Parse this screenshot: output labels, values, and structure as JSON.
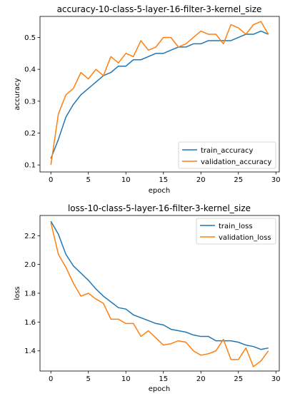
{
  "chart_data": [
    {
      "type": "line",
      "title": "accuracy-10-class-5-layer-16-filter-3-kernel_size",
      "xlabel": "epoch",
      "ylabel": "accuracy",
      "xlim": [
        -1.45,
        30.45
      ],
      "ylim": [
        0.078,
        0.566
      ],
      "xticks": [
        0,
        5,
        10,
        15,
        20,
        25,
        30
      ],
      "yticks": [
        0.1,
        0.2,
        0.3,
        0.4,
        0.5
      ],
      "ytick_labels": [
        "0.1",
        "0.2",
        "0.3",
        "0.4",
        "0.5"
      ],
      "grid": false,
      "legend_position": "lower-right",
      "x": [
        0,
        1,
        2,
        3,
        4,
        5,
        6,
        7,
        8,
        9,
        10,
        11,
        12,
        13,
        14,
        15,
        16,
        17,
        18,
        19,
        20,
        21,
        22,
        23,
        24,
        25,
        26,
        27,
        28,
        29
      ],
      "series": [
        {
          "name": "train_accuracy",
          "color": "#1f77b4",
          "values": [
            0.12,
            0.18,
            0.25,
            0.29,
            0.32,
            0.34,
            0.36,
            0.38,
            0.39,
            0.41,
            0.41,
            0.43,
            0.43,
            0.44,
            0.45,
            0.45,
            0.46,
            0.47,
            0.47,
            0.48,
            0.48,
            0.49,
            0.49,
            0.49,
            0.49,
            0.5,
            0.51,
            0.51,
            0.52,
            0.51
          ]
        },
        {
          "name": "validation_accuracy",
          "color": "#ff7f0e",
          "values": [
            0.1,
            0.26,
            0.32,
            0.34,
            0.39,
            0.37,
            0.4,
            0.38,
            0.44,
            0.42,
            0.45,
            0.44,
            0.49,
            0.46,
            0.47,
            0.5,
            0.5,
            0.47,
            0.48,
            0.5,
            0.52,
            0.51,
            0.51,
            0.48,
            0.54,
            0.53,
            0.51,
            0.54,
            0.55,
            0.51
          ]
        }
      ]
    },
    {
      "type": "line",
      "title": "loss-10-class-5-layer-16-filter-3-kernel_size",
      "xlabel": "epoch",
      "ylabel": "loss",
      "xlim": [
        -1.45,
        30.45
      ],
      "ylim": [
        1.26,
        2.34
      ],
      "xticks": [
        0,
        5,
        10,
        15,
        20,
        25,
        30
      ],
      "yticks": [
        1.4,
        1.6,
        1.8,
        2.0,
        2.2
      ],
      "ytick_labels": [
        "1.4",
        "1.6",
        "1.8",
        "2.0",
        "2.2"
      ],
      "grid": false,
      "legend_position": "upper-right",
      "x": [
        0,
        1,
        2,
        3,
        4,
        5,
        6,
        7,
        8,
        9,
        10,
        11,
        12,
        13,
        14,
        15,
        16,
        17,
        18,
        19,
        20,
        21,
        22,
        23,
        24,
        25,
        26,
        27,
        28,
        29
      ],
      "series": [
        {
          "name": "train_loss",
          "color": "#1f77b4",
          "values": [
            2.3,
            2.21,
            2.07,
            1.99,
            1.94,
            1.89,
            1.83,
            1.78,
            1.74,
            1.7,
            1.69,
            1.65,
            1.63,
            1.61,
            1.59,
            1.58,
            1.55,
            1.54,
            1.53,
            1.51,
            1.5,
            1.5,
            1.47,
            1.47,
            1.47,
            1.46,
            1.44,
            1.43,
            1.41,
            1.42
          ]
        },
        {
          "name": "validation_loss",
          "color": "#ff7f0e",
          "values": [
            2.29,
            2.07,
            1.98,
            1.87,
            1.78,
            1.8,
            1.76,
            1.73,
            1.62,
            1.62,
            1.59,
            1.59,
            1.5,
            1.54,
            1.49,
            1.44,
            1.45,
            1.47,
            1.46,
            1.4,
            1.37,
            1.38,
            1.4,
            1.48,
            1.34,
            1.34,
            1.42,
            1.29,
            1.33,
            1.4
          ]
        }
      ]
    }
  ]
}
